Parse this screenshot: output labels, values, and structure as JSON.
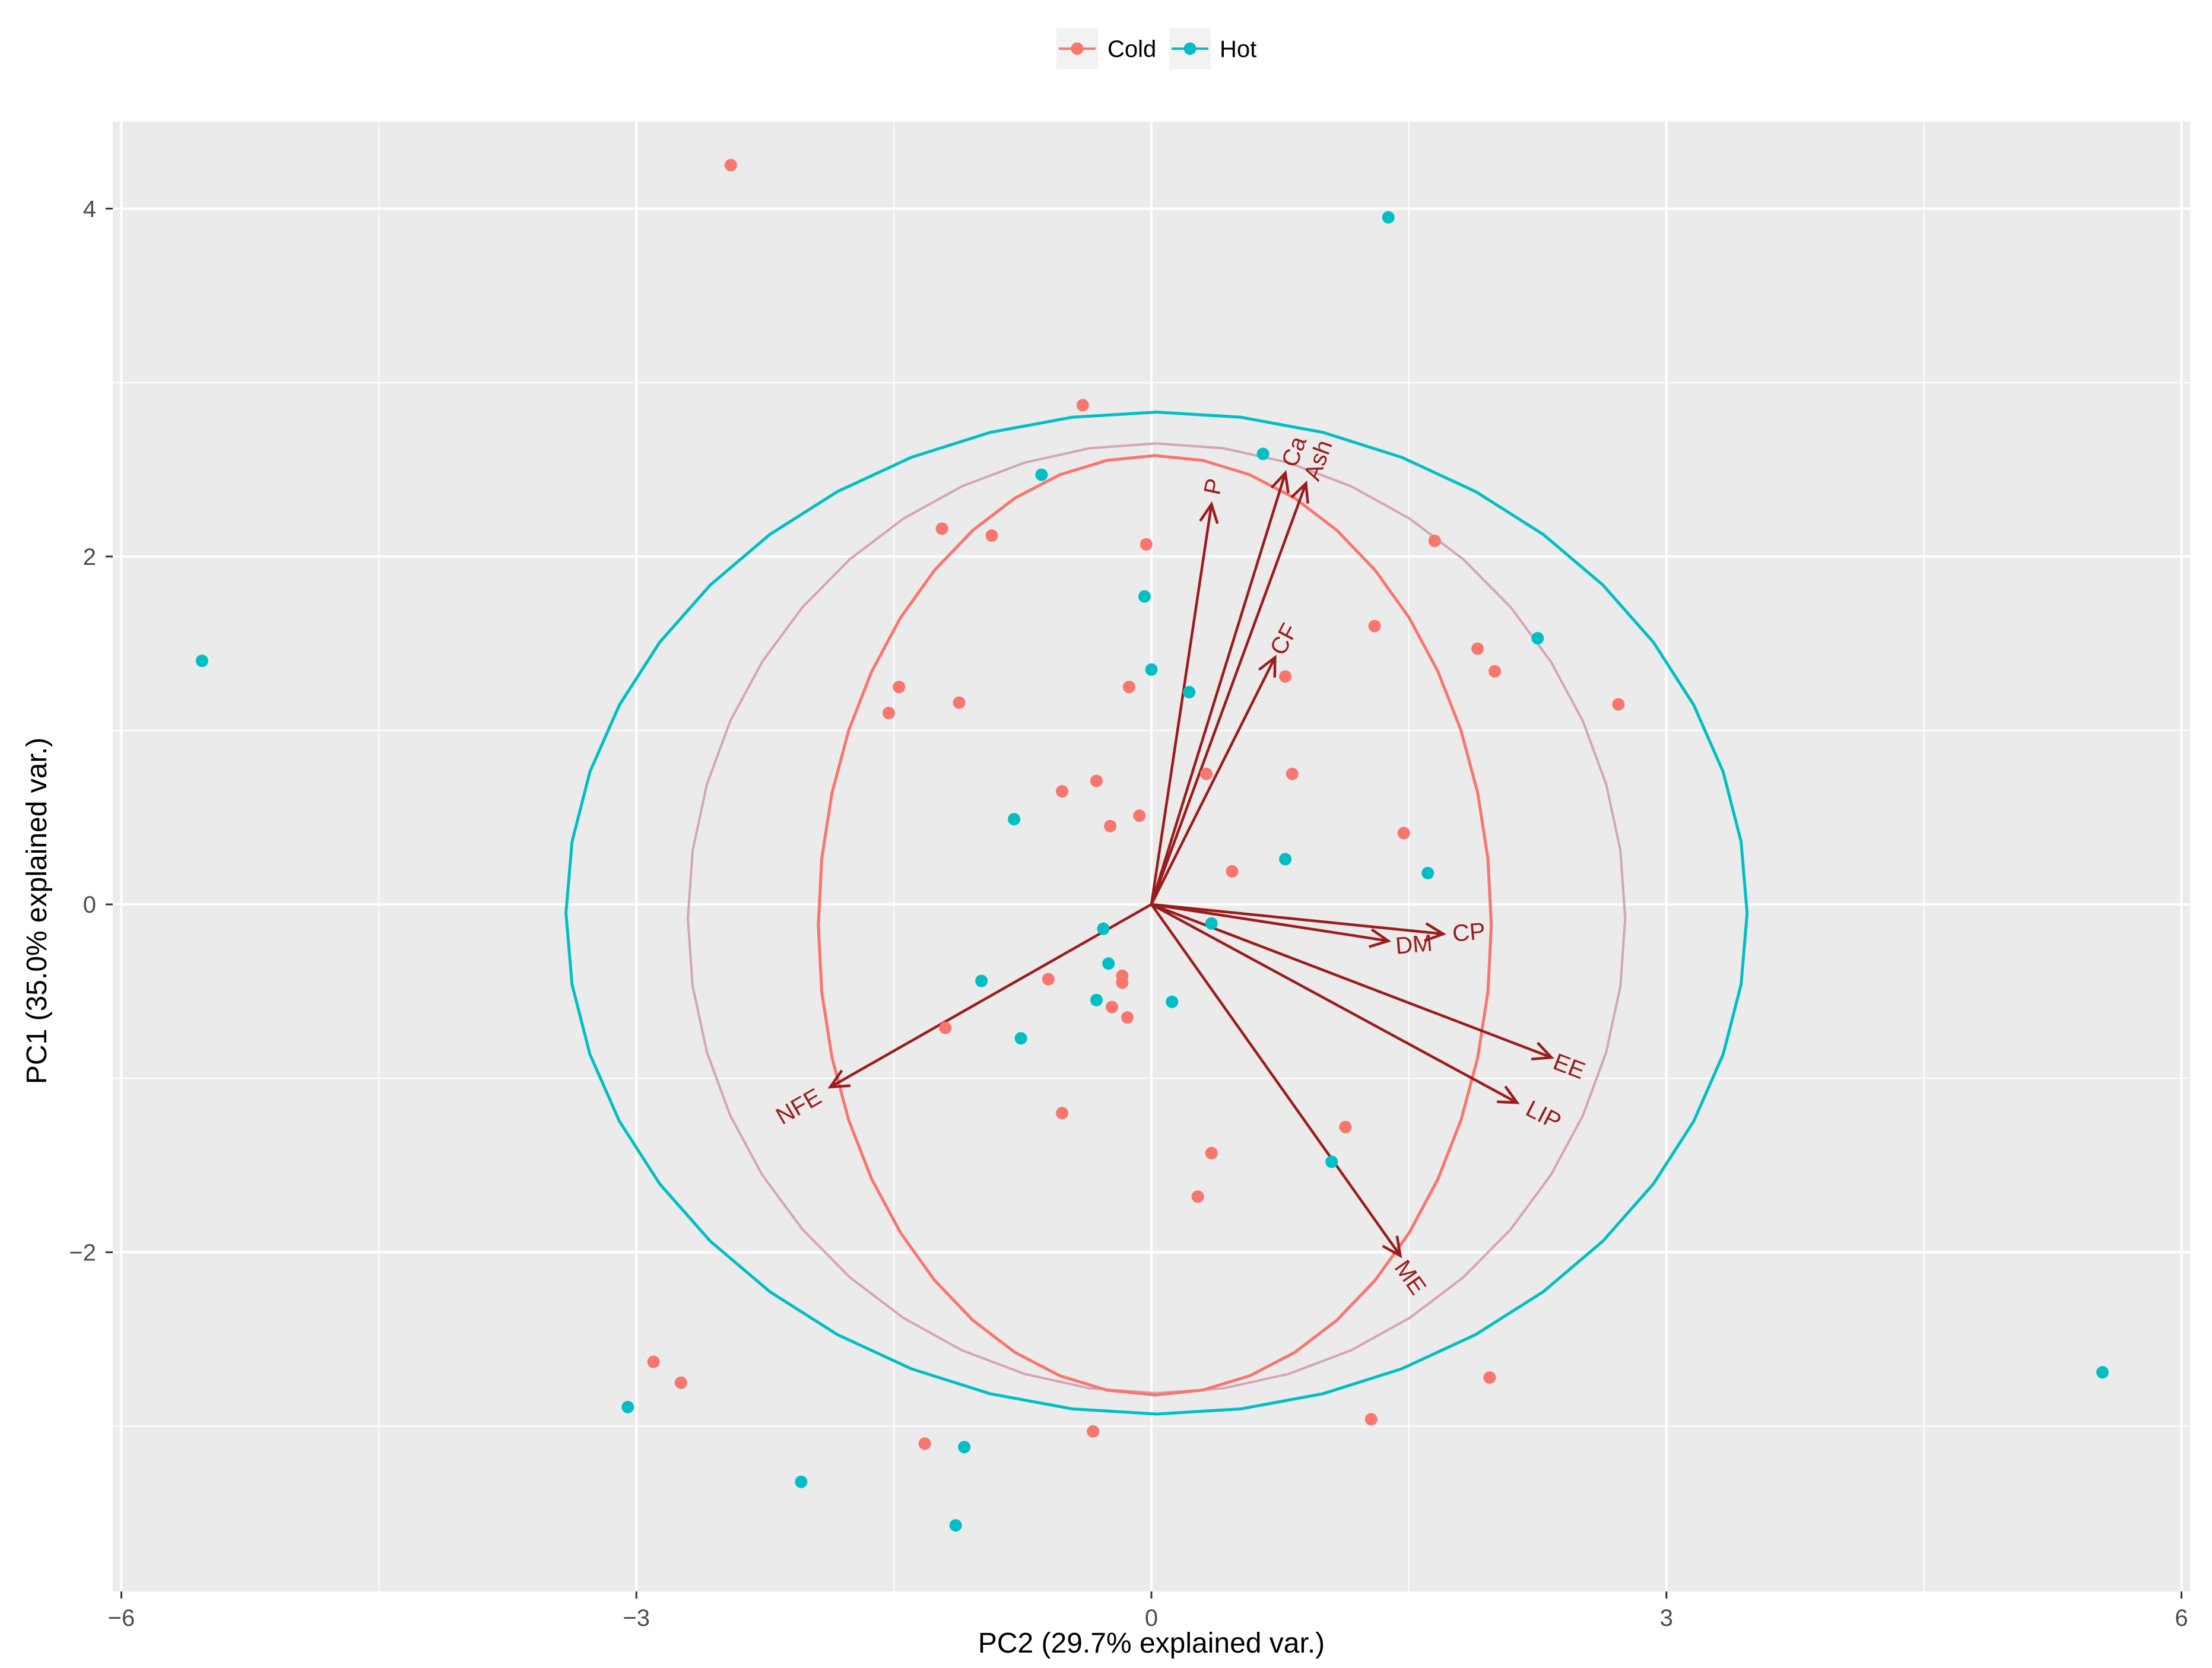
{
  "chart_data": {
    "type": "scatter",
    "title": "",
    "xlabel": "PC2 (29.7% explained var.)",
    "ylabel": "PC1 (35.0% explained var.)",
    "xlim": [
      -6.05,
      6.05
    ],
    "ylim": [
      -3.95,
      4.5
    ],
    "x_ticks": [
      -6,
      -3,
      0,
      3,
      6
    ],
    "x_tick_labels": [
      "−6",
      "−3",
      "0",
      "3",
      "6"
    ],
    "y_ticks": [
      -2,
      0,
      2,
      4
    ],
    "y_tick_labels": [
      "−2",
      "0",
      "2",
      "4"
    ],
    "grid": true,
    "legend_position": "top",
    "colors": {
      "Cold": "#F8766D",
      "Hot": "#00BFC4",
      "loading": "#9b1c1c",
      "overall_ellipse": "#d4a5b4",
      "panel": "#ebebeb",
      "grid": "#ffffff"
    },
    "series": [
      {
        "name": "Cold",
        "points": [
          [
            -2.45,
            4.25
          ],
          [
            -0.4,
            2.87
          ],
          [
            -1.22,
            2.16
          ],
          [
            -0.93,
            2.12
          ],
          [
            -0.03,
            2.07
          ],
          [
            1.65,
            2.09
          ],
          [
            1.3,
            1.6
          ],
          [
            1.9,
            1.47
          ],
          [
            2.0,
            1.34
          ],
          [
            2.72,
            1.15
          ],
          [
            -1.47,
            1.25
          ],
          [
            -1.12,
            1.16
          ],
          [
            -1.53,
            1.1
          ],
          [
            -0.13,
            1.25
          ],
          [
            0.78,
            1.31
          ],
          [
            0.32,
            0.75
          ],
          [
            0.82,
            0.75
          ],
          [
            -0.32,
            0.71
          ],
          [
            -0.52,
            0.65
          ],
          [
            -0.07,
            0.51
          ],
          [
            -0.24,
            0.45
          ],
          [
            1.47,
            0.41
          ],
          [
            0.47,
            0.19
          ],
          [
            -0.6,
            -0.43
          ],
          [
            -0.17,
            -0.41
          ],
          [
            -0.17,
            -0.45
          ],
          [
            -0.23,
            -0.59
          ],
          [
            -0.14,
            -0.65
          ],
          [
            -1.2,
            -0.71
          ],
          [
            -0.52,
            -1.2
          ],
          [
            1.13,
            -1.28
          ],
          [
            0.35,
            -1.43
          ],
          [
            0.27,
            -1.68
          ],
          [
            -2.9,
            -2.63
          ],
          [
            -2.74,
            -2.75
          ],
          [
            1.97,
            -2.72
          ],
          [
            1.28,
            -2.96
          ],
          [
            -1.32,
            -3.1
          ],
          [
            -0.34,
            -3.03
          ]
        ]
      },
      {
        "name": "Hot",
        "points": [
          [
            1.38,
            3.95
          ],
          [
            0.65,
            2.59
          ],
          [
            -0.64,
            2.47
          ],
          [
            -0.04,
            1.77
          ],
          [
            2.25,
            1.53
          ],
          [
            -5.53,
            1.4
          ],
          [
            0.0,
            1.35
          ],
          [
            0.22,
            1.22
          ],
          [
            -0.8,
            0.49
          ],
          [
            0.78,
            0.26
          ],
          [
            1.61,
            0.18
          ],
          [
            -0.28,
            -0.14
          ],
          [
            0.35,
            -0.11
          ],
          [
            -0.99,
            -0.44
          ],
          [
            -0.25,
            -0.34
          ],
          [
            -0.32,
            -0.55
          ],
          [
            0.12,
            -0.56
          ],
          [
            -0.76,
            -0.77
          ],
          [
            1.05,
            -1.48
          ],
          [
            -3.05,
            -2.89
          ],
          [
            -2.04,
            -3.32
          ],
          [
            -1.09,
            -3.12
          ],
          [
            -1.14,
            -3.57
          ],
          [
            5.54,
            -2.69
          ]
        ]
      }
    ],
    "loadings": [
      {
        "label": "Ca",
        "x": 0.78,
        "y": 2.48,
        "lx": 0.84,
        "ly": 2.6,
        "rot": -70
      },
      {
        "label": "Ash",
        "x": 0.9,
        "y": 2.42,
        "lx": 0.98,
        "ly": 2.55,
        "rot": -70
      },
      {
        "label": "P",
        "x": 0.35,
        "y": 2.3,
        "lx": 0.37,
        "ly": 2.4,
        "rot": -78
      },
      {
        "label": "CF",
        "x": 0.72,
        "y": 1.42,
        "lx": 0.78,
        "ly": 1.52,
        "rot": -62
      },
      {
        "label": "CP",
        "x": 1.7,
        "y": -0.17,
        "lx": 1.85,
        "ly": -0.17,
        "rot": -5
      },
      {
        "label": "DM",
        "x": 1.38,
        "y": -0.21,
        "lx": 1.53,
        "ly": -0.24,
        "rot": -5
      },
      {
        "label": "EE",
        "x": 2.33,
        "y": -0.88,
        "lx": 2.43,
        "ly": -0.94,
        "rot": 21
      },
      {
        "label": "LIP",
        "x": 2.13,
        "y": -1.14,
        "lx": 2.28,
        "ly": -1.22,
        "rot": 27
      },
      {
        "label": "ME",
        "x": 1.45,
        "y": -2.02,
        "lx": 1.5,
        "ly": -2.15,
        "rot": 55
      },
      {
        "label": "NFE",
        "x": -1.87,
        "y": -1.05,
        "lx": -2.05,
        "ly": -1.17,
        "rot": -30
      }
    ],
    "ellipses": [
      {
        "group": "Hot",
        "cx": 0.03,
        "cy": -0.05,
        "rx": 3.44,
        "ry": 2.88
      },
      {
        "group": "Overall",
        "cx": 0.03,
        "cy": -0.08,
        "rx": 2.73,
        "ry": 2.73
      },
      {
        "group": "Cold",
        "cx": 0.02,
        "cy": -0.12,
        "rx": 1.96,
        "ry": 2.7
      }
    ],
    "legend": [
      {
        "label": "Cold",
        "group": "Cold"
      },
      {
        "label": "Hot",
        "group": "Hot"
      }
    ]
  }
}
